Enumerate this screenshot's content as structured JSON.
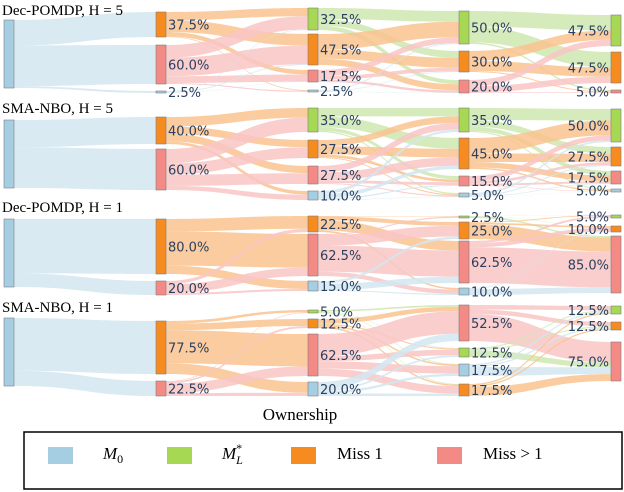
{
  "chart_data": {
    "type": "sankey",
    "xlabel": "Ownership",
    "categories": [
      "M0",
      "M_L*",
      "Miss 1",
      "Miss > 1"
    ],
    "colors": {
      "M0": "#a6cee3",
      "M_L*": "#a6d854",
      "Miss 1": "#f68b1f",
      "Miss > 1": "#f48a86"
    },
    "link_colors": {
      "M0": "#d2e6f0",
      "M_L*": "#cfe8b0",
      "Miss 1": "#f9c38e",
      "Miss > 1": "#f8c6c4"
    },
    "legend": [
      {
        "key": "M0",
        "label_main": "M",
        "label_sub": "0",
        "label_sup": ""
      },
      {
        "key": "M_L*",
        "label_main": "M",
        "label_sub": "L",
        "label_sup": "*"
      },
      {
        "key": "Miss 1",
        "label_main": "Miss 1",
        "label_sub": "",
        "label_sup": ""
      },
      {
        "key": "Miss > 1",
        "label_main": "Miss > 1",
        "label_sub": "",
        "label_sup": ""
      }
    ],
    "panels": [
      {
        "title": "Dec-POMDP, H = 5",
        "columns": [
          [
            {
              "cat": "M0",
              "value": 100.0,
              "label": ""
            }
          ],
          [
            {
              "cat": "Miss 1",
              "value": 37.5,
              "label": "37.5%"
            },
            {
              "cat": "Miss > 1",
              "value": 60.0,
              "label": "60.0%"
            },
            {
              "cat": "M0",
              "value": 2.5,
              "label": "2.5%"
            }
          ],
          [
            {
              "cat": "M_L*",
              "value": 32.5,
              "label": "32.5%"
            },
            {
              "cat": "Miss 1",
              "value": 47.5,
              "label": "47.5%"
            },
            {
              "cat": "Miss > 1",
              "value": 17.5,
              "label": "17.5%"
            },
            {
              "cat": "M0",
              "value": 2.5,
              "label": "2.5%"
            }
          ],
          [
            {
              "cat": "M_L*",
              "value": 50.0,
              "label": "50.0%"
            },
            {
              "cat": "Miss 1",
              "value": 30.0,
              "label": "30.0%"
            },
            {
              "cat": "Miss > 1",
              "value": 20.0,
              "label": "20.0%"
            }
          ],
          [
            {
              "cat": "M_L*",
              "value": 47.5,
              "label": "47.5%"
            },
            {
              "cat": "Miss 1",
              "value": 47.5,
              "label": "47.5%"
            },
            {
              "cat": "Miss > 1",
              "value": 5.0,
              "label": "5.0%"
            }
          ]
        ]
      },
      {
        "title": "SMA-NBO, H = 5",
        "columns": [
          [
            {
              "cat": "M0",
              "value": 100.0,
              "label": ""
            }
          ],
          [
            {
              "cat": "Miss 1",
              "value": 40.0,
              "label": "40.0%"
            },
            {
              "cat": "Miss > 1",
              "value": 60.0,
              "label": "60.0%"
            }
          ],
          [
            {
              "cat": "M_L*",
              "value": 35.0,
              "label": "35.0%"
            },
            {
              "cat": "Miss 1",
              "value": 27.5,
              "label": "27.5%"
            },
            {
              "cat": "Miss > 1",
              "value": 27.5,
              "label": "27.5%"
            },
            {
              "cat": "M0",
              "value": 10.0,
              "label": "10.0%"
            }
          ],
          [
            {
              "cat": "M_L*",
              "value": 35.0,
              "label": "35.0%"
            },
            {
              "cat": "Miss 1",
              "value": 45.0,
              "label": "45.0%"
            },
            {
              "cat": "Miss > 1",
              "value": 15.0,
              "label": "15.0%"
            },
            {
              "cat": "M0",
              "value": 5.0,
              "label": "5.0%"
            }
          ],
          [
            {
              "cat": "M_L*",
              "value": 50.0,
              "label": "50.0%"
            },
            {
              "cat": "Miss 1",
              "value": 27.5,
              "label": "27.5%"
            },
            {
              "cat": "Miss > 1",
              "value": 17.5,
              "label": "17.5%"
            },
            {
              "cat": "M0",
              "value": 5.0,
              "label": "5.0%"
            }
          ]
        ]
      },
      {
        "title": "Dec-POMDP, H = 1",
        "columns": [
          [
            {
              "cat": "M0",
              "value": 100.0,
              "label": ""
            }
          ],
          [
            {
              "cat": "Miss 1",
              "value": 80.0,
              "label": "80.0%"
            },
            {
              "cat": "Miss > 1",
              "value": 20.0,
              "label": "20.0%"
            }
          ],
          [
            {
              "cat": "Miss 1",
              "value": 22.5,
              "label": "22.5%"
            },
            {
              "cat": "Miss > 1",
              "value": 62.5,
              "label": "62.5%"
            },
            {
              "cat": "M0",
              "value": 15.0,
              "label": "15.0%"
            }
          ],
          [
            {
              "cat": "M_L*",
              "value": 2.5,
              "label": "2.5%"
            },
            {
              "cat": "Miss 1",
              "value": 25.0,
              "label": "25.0%"
            },
            {
              "cat": "Miss > 1",
              "value": 62.5,
              "label": "62.5%"
            },
            {
              "cat": "M0",
              "value": 10.0,
              "label": "10.0%"
            }
          ],
          [
            {
              "cat": "M_L*",
              "value": 5.0,
              "label": "5.0%"
            },
            {
              "cat": "Miss 1",
              "value": 10.0,
              "label": "10.0%"
            },
            {
              "cat": "Miss > 1",
              "value": 85.0,
              "label": "85.0%"
            }
          ]
        ]
      },
      {
        "title": "SMA-NBO, H = 1",
        "columns": [
          [
            {
              "cat": "M0",
              "value": 100.0,
              "label": ""
            }
          ],
          [
            {
              "cat": "Miss 1",
              "value": 77.5,
              "label": "77.5%"
            },
            {
              "cat": "Miss > 1",
              "value": 22.5,
              "label": "22.5%"
            }
          ],
          [
            {
              "cat": "M_L*",
              "value": 5.0,
              "label": "5.0%"
            },
            {
              "cat": "Miss 1",
              "value": 12.5,
              "label": "12.5%"
            },
            {
              "cat": "Miss > 1",
              "value": 62.5,
              "label": "62.5%"
            },
            {
              "cat": "M0",
              "value": 20.0,
              "label": "20.0%"
            }
          ],
          [
            {
              "cat": "Miss > 1",
              "value": 52.5,
              "label": "52.5%"
            },
            {
              "cat": "M_L*",
              "value": 12.5,
              "label": "12.5%"
            },
            {
              "cat": "M0",
              "value": 17.5,
              "label": "17.5%"
            },
            {
              "cat": "Miss 1",
              "value": 17.5,
              "label": "17.5%"
            }
          ],
          [
            {
              "cat": "M_L*",
              "value": 12.5,
              "label": "12.5%"
            },
            {
              "cat": "Miss 1",
              "value": 12.5,
              "label": "12.5%"
            },
            {
              "cat": "Miss > 1",
              "value": 75.0,
              "label": "75.0%"
            }
          ]
        ]
      }
    ]
  }
}
